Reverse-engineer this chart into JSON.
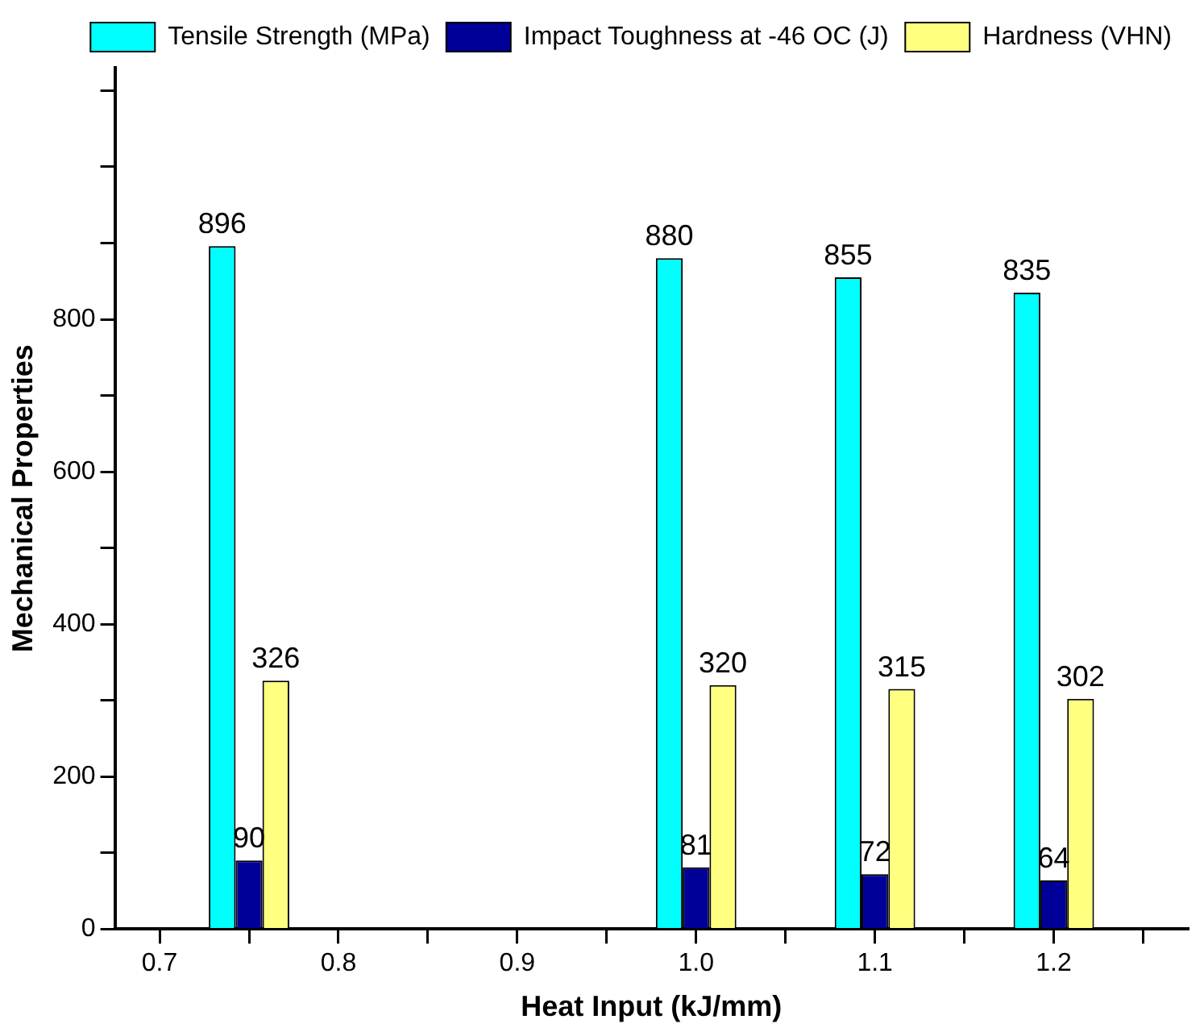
{
  "chart_data": {
    "type": "bar",
    "xlabel": "Heat Input (kJ/mm)",
    "ylabel": "Mechanical Properties",
    "x": [
      0.75,
      1.0,
      1.1,
      1.2
    ],
    "series": [
      {
        "name": "Tensile Strength (MPa)",
        "color": "#00ffff",
        "values": [
          896,
          880,
          855,
          835
        ]
      },
      {
        "name": "Impact Toughness at -46 OC (J)",
        "color": "#000099",
        "values": [
          90,
          81,
          72,
          64
        ]
      },
      {
        "name": "Hardness (VHN)",
        "color": "#ffff80",
        "values": [
          326,
          320,
          315,
          302
        ]
      }
    ],
    "xlim": [
      0.675,
      1.275
    ],
    "xticks": [
      {
        "value": 0.7,
        "label": "0.7"
      },
      {
        "value": 0.75,
        "label": null
      },
      {
        "value": 0.8,
        "label": "0.8"
      },
      {
        "value": 0.85,
        "label": null
      },
      {
        "value": 0.9,
        "label": "0.9"
      },
      {
        "value": 0.95,
        "label": null
      },
      {
        "value": 1.0,
        "label": "1.0"
      },
      {
        "value": 1.05,
        "label": null
      },
      {
        "value": 1.1,
        "label": "1.1"
      },
      {
        "value": 1.15,
        "label": null
      },
      {
        "value": 1.2,
        "label": "1.2"
      },
      {
        "value": 1.25,
        "label": null
      }
    ],
    "ylim": [
      0,
      1130
    ],
    "yticks": [
      0,
      {
        "value": 100,
        "label": null
      },
      200,
      {
        "value": 300,
        "label": null
      },
      400,
      {
        "value": 500,
        "label": null
      },
      600,
      {
        "value": 700,
        "label": null
      },
      800,
      {
        "value": 900,
        "label": null
      },
      {
        "value": 1000,
        "label": null
      },
      {
        "value": 1100,
        "label": null
      }
    ],
    "data_labels": true,
    "legend": "top right",
    "grid": false
  }
}
